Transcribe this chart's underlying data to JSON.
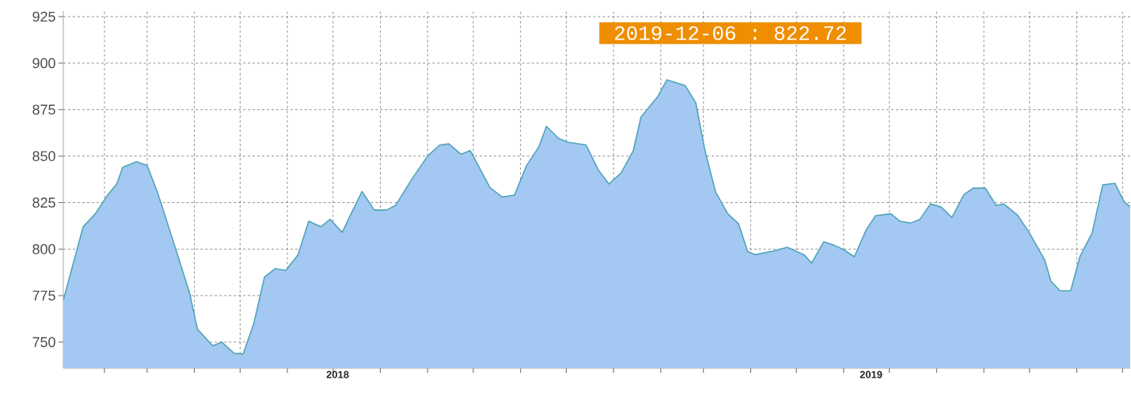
{
  "chart_data": {
    "type": "area",
    "x": [
      "2018-01-05",
      "2018-01-18",
      "2018-01-26",
      "2018-02-03",
      "2018-02-09",
      "2018-02-13",
      "2018-02-22",
      "2018-03-01",
      "2018-03-08",
      "2018-03-19",
      "2018-03-29",
      "2018-04-03",
      "2018-04-13",
      "2018-04-19",
      "2018-04-27",
      "2018-05-03",
      "2018-05-10",
      "2018-05-17",
      "2018-05-24",
      "2018-05-31",
      "2018-06-08",
      "2018-06-15",
      "2018-06-23",
      "2018-06-29",
      "2018-07-07",
      "2018-07-14",
      "2018-07-20",
      "2018-07-28",
      "2018-08-05",
      "2018-08-11",
      "2018-08-22",
      "2018-09-01",
      "2018-09-09",
      "2018-09-15",
      "2018-09-23",
      "2018-09-29",
      "2018-10-12",
      "2018-10-20",
      "2018-10-28",
      "2018-11-05",
      "2018-11-13",
      "2018-11-18",
      "2018-11-26",
      "2018-12-02",
      "2018-12-14",
      "2018-12-22",
      "2018-12-29",
      "2019-01-06",
      "2019-01-14",
      "2019-01-19",
      "2019-01-30",
      "2019-02-05",
      "2019-02-17",
      "2019-02-24",
      "2019-03-02",
      "2019-03-09",
      "2019-03-17",
      "2019-03-24",
      "2019-03-30",
      "2019-04-04",
      "2019-04-15",
      "2019-04-25",
      "2019-05-06",
      "2019-05-11",
      "2019-05-19",
      "2019-05-26",
      "2019-06-01",
      "2019-06-08",
      "2019-06-16",
      "2019-06-22",
      "2019-07-02",
      "2019-07-08",
      "2019-07-15",
      "2019-07-21",
      "2019-07-28",
      "2019-08-04",
      "2019-08-11",
      "2019-08-19",
      "2019-08-25",
      "2019-09-02",
      "2019-09-09",
      "2019-09-14",
      "2019-09-23",
      "2019-10-01",
      "2019-10-11",
      "2019-10-15",
      "2019-10-21",
      "2019-10-28",
      "2019-11-03",
      "2019-11-11",
      "2019-11-18",
      "2019-11-26",
      "2019-12-02",
      "2019-12-06"
    ],
    "series": [
      {
        "color": "#a3c8f2",
        "values": [
          772.5,
          812,
          819,
          829,
          835,
          844,
          847,
          845,
          830,
          802,
          776,
          757,
          748,
          750,
          744,
          743.6,
          760,
          785,
          789.5,
          788.6,
          797,
          815,
          812,
          816,
          809,
          821,
          831,
          821,
          821,
          823.5,
          838,
          850,
          856,
          856.6,
          851,
          853,
          833,
          828,
          829,
          845,
          855,
          866,
          859.5,
          857.5,
          856,
          842.6,
          835,
          841,
          853,
          871,
          882,
          891,
          888,
          878.7,
          853,
          830.7,
          819,
          813.7,
          798.8,
          797,
          798.8,
          801,
          797,
          792.5,
          804,
          802,
          799.7,
          795.9,
          810.7,
          818,
          819,
          815,
          814,
          816,
          824.3,
          822.6,
          817,
          829.4,
          832.8,
          832.8,
          823.5,
          824.3,
          818.4,
          808.6,
          794,
          782.7,
          777.6,
          777.6,
          795.9,
          808.6,
          834.5,
          835.4,
          825.6,
          822.72
        ]
      }
    ],
    "xlim": [
      "2018-01-05",
      "2019-12-06"
    ],
    "xticks": [
      {
        "value": "2018-02-01",
        "label": null
      },
      {
        "value": "2018-03-01",
        "label": null
      },
      {
        "value": "2018-04-01",
        "label": null
      },
      {
        "value": "2018-05-01",
        "label": null
      },
      {
        "value": "2018-06-01",
        "label": null
      },
      {
        "value": "2018-07-01",
        "label": null
      },
      {
        "value": "2018-08-01",
        "label": null
      },
      {
        "value": "2018-09-01",
        "label": null
      },
      {
        "value": "2018-10-01",
        "label": null
      },
      {
        "value": "2018-11-01",
        "label": null
      },
      {
        "value": "2018-12-01",
        "label": null
      },
      {
        "value": "2019-01-01",
        "label": null
      },
      {
        "value": "2019-02-01",
        "label": null
      },
      {
        "value": "2019-03-01",
        "label": null
      },
      {
        "value": "2019-04-01",
        "label": null
      },
      {
        "value": "2019-05-01",
        "label": null
      },
      {
        "value": "2019-06-01",
        "label": null
      },
      {
        "value": "2019-07-01",
        "label": null
      },
      {
        "value": "2019-08-01",
        "label": null
      },
      {
        "value": "2019-09-01",
        "label": null
      },
      {
        "value": "2019-10-01",
        "label": null
      },
      {
        "value": "2019-11-01",
        "label": null
      },
      {
        "value": "2019-12-01",
        "label": null
      },
      {
        "value": "2018-07-04",
        "label": "2018"
      },
      {
        "value": "2019-06-19",
        "label": "2019"
      }
    ],
    "ylim": [
      736,
      928
    ],
    "yticks": [
      750,
      775,
      800,
      825,
      850,
      875,
      900,
      925
    ],
    "grid": true,
    "annotations": [
      "2019-12-06 : 822.72"
    ]
  }
}
